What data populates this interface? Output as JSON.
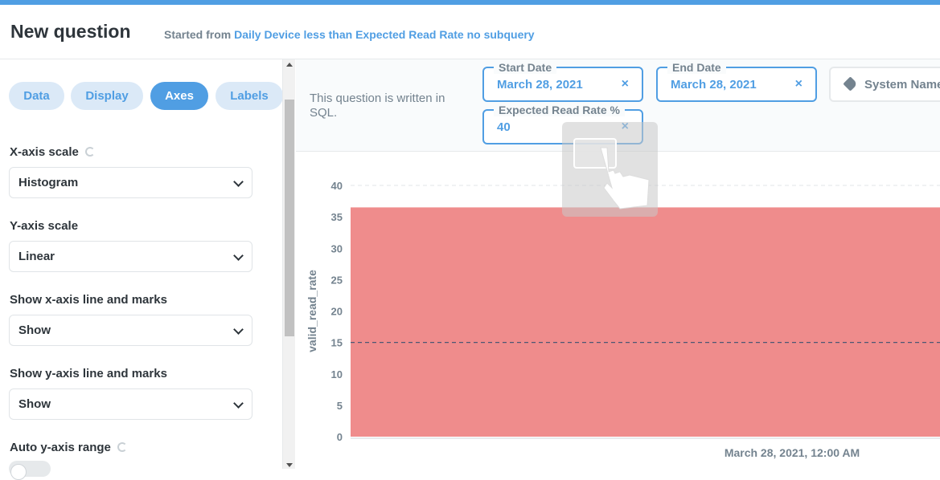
{
  "header": {
    "title": "New question",
    "started_from_prefix": "Started from",
    "started_from_link": "Daily Device less than Expected Read Rate no subquery"
  },
  "sidebar": {
    "tabs": [
      {
        "label": "Data",
        "active": false
      },
      {
        "label": "Display",
        "active": false
      },
      {
        "label": "Axes",
        "active": true
      },
      {
        "label": "Labels",
        "active": false
      }
    ],
    "fields": [
      {
        "label": "X-axis scale",
        "value": "Histogram"
      },
      {
        "label": "Y-axis scale",
        "value": "Linear"
      },
      {
        "label": "Show x-axis line and marks",
        "value": "Show"
      },
      {
        "label": "Show y-axis line and marks",
        "value": "Show"
      }
    ],
    "auto_range_label": "Auto y-axis range"
  },
  "filters": {
    "sql_note": "This question is written in SQL.",
    "start_date": {
      "label": "Start Date",
      "value": "March 28, 2021"
    },
    "end_date": {
      "label": "End Date",
      "value": "March 28, 2021"
    },
    "expected_read_rate": {
      "label": "Expected Read Rate %",
      "value": "40"
    },
    "system_name": {
      "label": "System Name"
    },
    "clear_glyph": "×"
  },
  "chart_data": {
    "type": "bar",
    "categories": [
      "March 28, 2021, 12:00 AM"
    ],
    "values": [
      36.5
    ],
    "ylabel": "valid_read_rate",
    "xlabel": "",
    "ylim": [
      0,
      40
    ],
    "yticks": [
      0,
      5,
      10,
      15,
      20,
      25,
      30,
      35,
      40
    ],
    "goal_line": 15,
    "bar_color": "#ef8c8c"
  },
  "colors": {
    "accent": "#509ee3",
    "bar": "#ef8c8c"
  }
}
